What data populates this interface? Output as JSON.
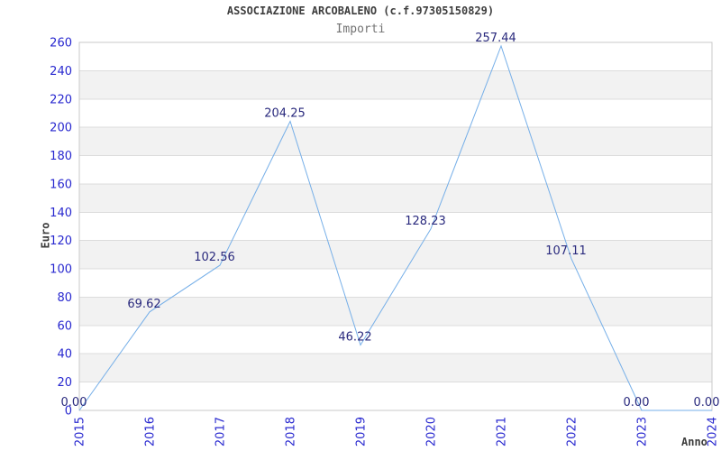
{
  "header": {
    "title": "ASSOCIAZIONE ARCOBALENO (c.f.97305150829)",
    "subtitle": "Importi"
  },
  "chart_data": {
    "type": "line",
    "title": "ASSOCIAZIONE ARCOBALENO (c.f.97305150829)",
    "subtitle": "Importi",
    "xlabel": "Anno",
    "ylabel": "Euro",
    "categories": [
      "2015",
      "2016",
      "2017",
      "2018",
      "2019",
      "2020",
      "2021",
      "2022",
      "2023",
      "2024"
    ],
    "values": [
      0,
      69.62,
      102.56,
      204.25,
      46.22,
      128.23,
      257.44,
      107.11,
      0,
      0
    ],
    "point_labels": [
      "0.00",
      "69.62",
      "102.56",
      "204.25",
      "46.22",
      "128.23",
      "257.44",
      "107.11",
      "0.00",
      "0.00"
    ],
    "ylim": [
      0,
      260
    ],
    "ytick_step": 20,
    "grid": "horizontal",
    "bands": "alternating-horizontal",
    "legend": "none",
    "colors": {
      "line": "#76afe8",
      "tick_label": "#2828cf",
      "point_label": "#29297d",
      "band": "#f2f2f2",
      "gridline": "#dcdcdc",
      "border": "#c9c9c9",
      "title": "#3d3d3d",
      "subtitle": "#737373",
      "background": "#ffffff"
    }
  }
}
